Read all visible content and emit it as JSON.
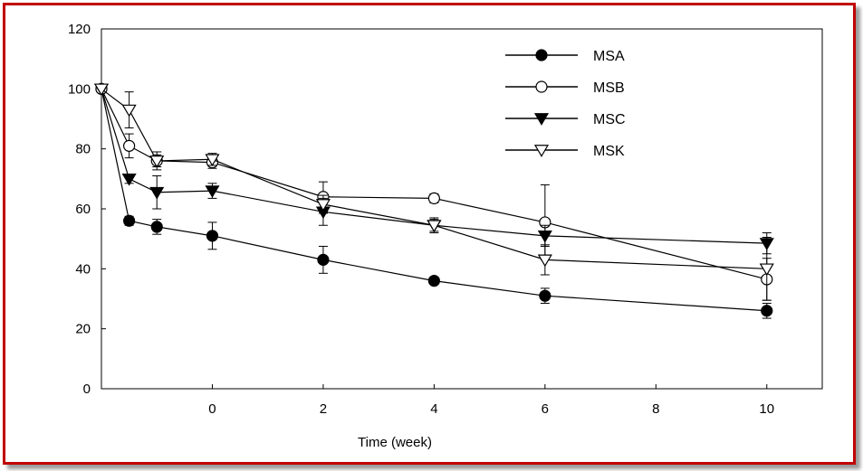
{
  "chart_data": {
    "type": "line",
    "title": "",
    "xlabel": "Time (week)",
    "ylabel": "",
    "xlim": [
      -2,
      11
    ],
    "ylim": [
      0,
      120
    ],
    "xticks": [
      0,
      2,
      4,
      6,
      8,
      10
    ],
    "yticks": [
      0,
      20,
      40,
      60,
      80,
      100,
      120
    ],
    "grid": false,
    "legend_position": "top-right",
    "error_bars": true,
    "series": [
      {
        "name": "MSA",
        "marker": "filled-circle",
        "points": [
          {
            "x": -2.0,
            "y": 100,
            "err": 0
          },
          {
            "x": -1.5,
            "y": 56,
            "err": 1.5
          },
          {
            "x": -1.0,
            "y": 54,
            "err": 2.5
          },
          {
            "x": 0,
            "y": 51,
            "err": 4.5
          },
          {
            "x": 2,
            "y": 43,
            "err": 4.5
          },
          {
            "x": 4,
            "y": 36,
            "err": 1
          },
          {
            "x": 6,
            "y": 31,
            "err": 2.5
          },
          {
            "x": 10,
            "y": 26,
            "err": 2.5
          }
        ]
      },
      {
        "name": "MSB",
        "marker": "open-circle",
        "points": [
          {
            "x": -2.0,
            "y": 100,
            "err": 0
          },
          {
            "x": -1.5,
            "y": 81,
            "err": 4
          },
          {
            "x": -1.0,
            "y": 76,
            "err": 3
          },
          {
            "x": 0,
            "y": 75.5,
            "err": 2
          },
          {
            "x": 2,
            "y": 64,
            "err": 5
          },
          {
            "x": 4,
            "y": 63.5,
            "err": 1.5
          },
          {
            "x": 6,
            "y": 55.5,
            "err": 12.5
          },
          {
            "x": 10,
            "y": 36.5,
            "err": 7
          }
        ]
      },
      {
        "name": "MSC",
        "marker": "filled-triangle-down",
        "points": [
          {
            "x": -2.0,
            "y": 100,
            "err": 0
          },
          {
            "x": -1.5,
            "y": 70,
            "err": 1.5
          },
          {
            "x": -1.0,
            "y": 65.5,
            "err": 5.5
          },
          {
            "x": 0,
            "y": 66,
            "err": 2.5
          },
          {
            "x": 2,
            "y": 59,
            "err": 4.5
          },
          {
            "x": 4,
            "y": 54.5,
            "err": 2.5
          },
          {
            "x": 6,
            "y": 51,
            "err": 3.5
          },
          {
            "x": 10,
            "y": 48.5,
            "err": 3.5
          }
        ]
      },
      {
        "name": "MSK",
        "marker": "open-triangle-down",
        "points": [
          {
            "x": -2.0,
            "y": 100,
            "err": 0
          },
          {
            "x": -1.5,
            "y": 93,
            "err": 6
          },
          {
            "x": -1.0,
            "y": 76,
            "err": 2
          },
          {
            "x": 0,
            "y": 76.5,
            "err": 2
          },
          {
            "x": 2,
            "y": 61.5,
            "err": 3
          },
          {
            "x": 4,
            "y": 54.5,
            "err": 2
          },
          {
            "x": 6,
            "y": 43,
            "err": 5
          },
          {
            "x": 10,
            "y": 40,
            "err": 10.5
          }
        ]
      }
    ]
  }
}
